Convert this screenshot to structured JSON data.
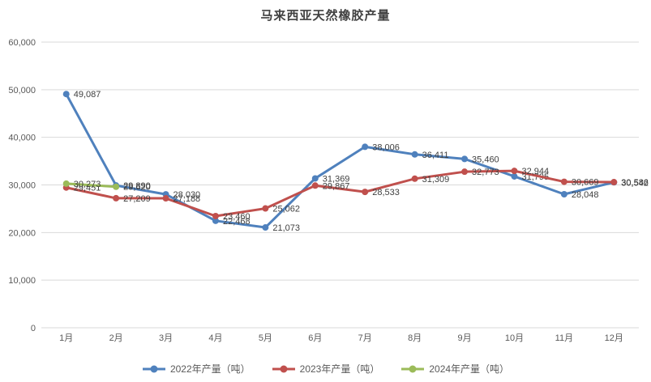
{
  "chart_data": {
    "type": "line",
    "title": "马来西亚天然橡胶产量",
    "categories": [
      "1月",
      "2月",
      "3月",
      "4月",
      "5月",
      "6月",
      "7月",
      "8月",
      "9月",
      "10月",
      "11月",
      "12月"
    ],
    "series": [
      {
        "name": "2022年产量（吨）",
        "color": "#4F81BD",
        "values": [
          49087,
          29890,
          28030,
          22468,
          21073,
          31369,
          38006,
          36411,
          35460,
          31795,
          28048,
          30542
        ]
      },
      {
        "name": "2023年产量（吨）",
        "color": "#C0504D",
        "values": [
          29451,
          27209,
          27188,
          23460,
          25062,
          29867,
          28533,
          31309,
          32773,
          32944,
          30669,
          30586
        ]
      },
      {
        "name": "2024年产量（吨）",
        "color": "#9BBB59",
        "values": [
          30273,
          29620,
          null,
          null,
          null,
          null,
          null,
          null,
          null,
          null,
          null,
          null
        ]
      }
    ],
    "ylim": [
      0,
      60000
    ],
    "y_tick_step": 10000,
    "y_tick_labels": [
      "0",
      "10,000",
      "20,000",
      "30,000",
      "40,000",
      "50,000",
      "60,000"
    ],
    "grid": "horizontal",
    "legend_position": "bottom",
    "data_labels": true,
    "axis_color": "#595959",
    "grid_color": "#D9D9D9",
    "label_color": "#404040"
  }
}
